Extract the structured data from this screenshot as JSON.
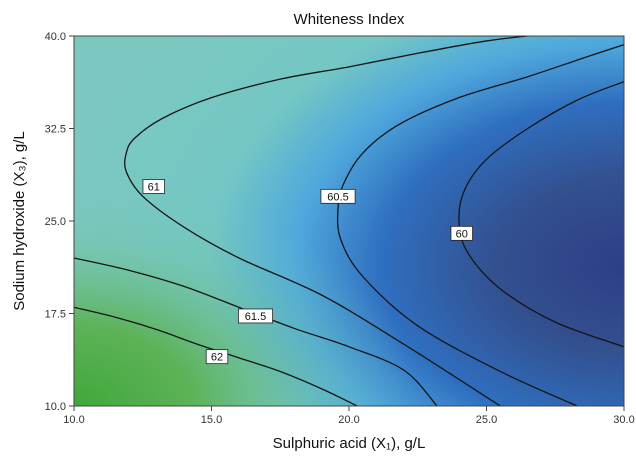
{
  "chart_data": {
    "type": "contour",
    "title": "Whiteness Index",
    "xlabel": "Sulphuric acid (X₁), g/L",
    "ylabel": "Sodium hydroxide (X₃), g/L",
    "xlim": [
      10.0,
      30.0
    ],
    "ylim": [
      10.0,
      40.0
    ],
    "x_ticks": [
      "10.0",
      "15.0",
      "20.0",
      "25.0",
      "30.0"
    ],
    "y_ticks": [
      "10.0",
      "17.5",
      "25.0",
      "32.5",
      "40.0"
    ],
    "grid": false,
    "fill_colors": {
      "low": "#2c3f86",
      "mid_low": "#2f6fc0",
      "mid": "#4fa8dc",
      "mid_high": "#74c7c4",
      "high": "#3ea83a"
    },
    "contours": [
      {
        "label": "62",
        "level": 62,
        "label_at": [
          15.2,
          14.0
        ],
        "points": [
          [
            10.0,
            18.0
          ],
          [
            11.5,
            17.2
          ],
          [
            13.0,
            16.2
          ],
          [
            14.5,
            15.0
          ],
          [
            16.0,
            13.9
          ],
          [
            17.5,
            12.8
          ],
          [
            19.0,
            11.4
          ],
          [
            20.3,
            10.0
          ]
        ]
      },
      {
        "label": "61.5",
        "level": 61.5,
        "label_at": [
          16.6,
          17.3
        ],
        "points": [
          [
            10.0,
            22.0
          ],
          [
            12.0,
            21.0
          ],
          [
            14.0,
            19.7
          ],
          [
            16.0,
            18.0
          ],
          [
            18.0,
            16.3
          ],
          [
            20.0,
            14.8
          ],
          [
            22.0,
            12.9
          ],
          [
            23.2,
            10.0
          ]
        ]
      },
      {
        "label": "61",
        "level": 61,
        "label_at": [
          12.9,
          27.8
        ],
        "points": [
          [
            25.5,
            10.0
          ],
          [
            22.0,
            15.0
          ],
          [
            19.0,
            19.0
          ],
          [
            16.0,
            22.0
          ],
          [
            14.0,
            24.5
          ],
          [
            12.5,
            27.0
          ],
          [
            11.9,
            29.0
          ],
          [
            11.9,
            30.5
          ],
          [
            12.2,
            31.7
          ],
          [
            13.2,
            33.3
          ],
          [
            15.0,
            35.0
          ],
          [
            17.5,
            36.5
          ],
          [
            20.0,
            37.5
          ],
          [
            22.5,
            38.6
          ],
          [
            25.0,
            39.6
          ],
          [
            26.5,
            40.0
          ]
        ]
      },
      {
        "label": "60.5",
        "level": 60.5,
        "label_at": [
          19.6,
          27.0
        ],
        "points": [
          [
            28.3,
            10.0
          ],
          [
            25.5,
            12.8
          ],
          [
            22.5,
            16.5
          ],
          [
            20.5,
            20.5
          ],
          [
            19.7,
            23.5
          ],
          [
            19.6,
            26.0
          ],
          [
            19.8,
            28.0
          ],
          [
            20.5,
            30.5
          ],
          [
            21.8,
            32.8
          ],
          [
            24.0,
            35.0
          ],
          [
            26.5,
            36.7
          ],
          [
            28.5,
            38.2
          ],
          [
            30.0,
            39.3
          ]
        ]
      },
      {
        "label": "60",
        "level": 60,
        "label_at": [
          24.1,
          24.0
        ],
        "points": [
          [
            30.0,
            14.8
          ],
          [
            27.5,
            16.8
          ],
          [
            25.5,
            19.5
          ],
          [
            24.3,
            22.5
          ],
          [
            24.0,
            25.0
          ],
          [
            24.2,
            27.5
          ],
          [
            25.0,
            30.0
          ],
          [
            26.5,
            32.5
          ],
          [
            28.3,
            34.8
          ],
          [
            30.0,
            36.3
          ]
        ]
      }
    ]
  }
}
